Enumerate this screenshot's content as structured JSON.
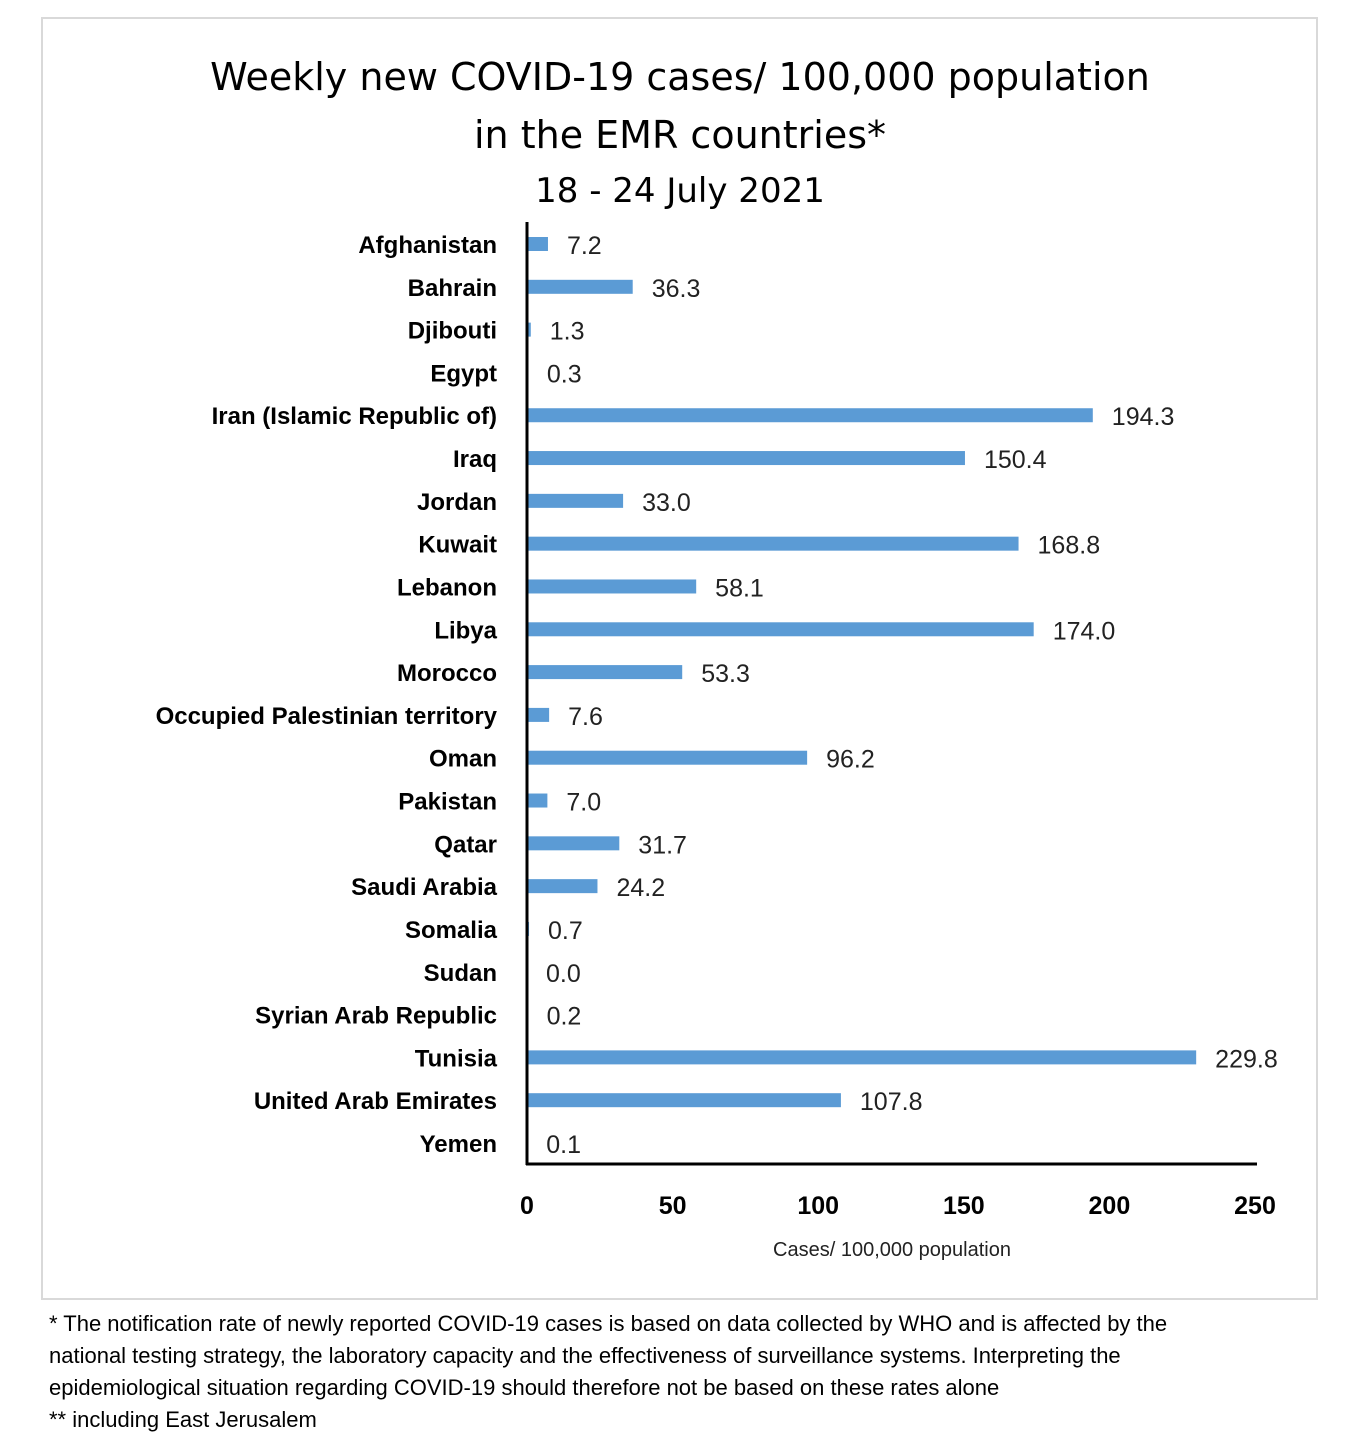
{
  "chart_data": {
    "type": "bar",
    "orientation": "horizontal",
    "title": "Weekly new COVID-19 cases/ 100,000 population",
    "title_line2": "in the EMR countries*",
    "subtitle": "18 - 24 July 2021",
    "xlabel": "Cases/ 100,000 population",
    "ylabel": "",
    "xlim": [
      0,
      250
    ],
    "xticks": [
      "0",
      "50",
      "100",
      "150",
      "200",
      "250"
    ],
    "xtick_values": [
      0,
      50,
      100,
      150,
      200,
      250
    ],
    "grid": false,
    "legend": "none",
    "bar_color": "#5b9bd5",
    "categories": [
      "Afghanistan",
      "Bahrain",
      "Djibouti",
      "Egypt",
      "Iran (Islamic Republic of)",
      "Iraq",
      "Jordan",
      "Kuwait",
      "Lebanon",
      "Libya",
      "Morocco",
      "Occupied Palestinian territory",
      "Oman",
      "Pakistan",
      "Qatar",
      "Saudi Arabia",
      "Somalia",
      "Sudan",
      "Syrian Arab Republic",
      "Tunisia",
      "United Arab Emirates",
      "Yemen"
    ],
    "values": [
      7.2,
      36.3,
      1.3,
      0.3,
      194.3,
      150.4,
      33.0,
      168.8,
      58.1,
      174.0,
      53.3,
      7.6,
      96.2,
      7.0,
      31.7,
      24.2,
      0.7,
      0.0,
      0.2,
      229.8,
      107.8,
      0.1
    ],
    "data_labels": [
      "7.2",
      "36.3",
      "1.3",
      "0.3",
      "194.3",
      "150.4",
      "33.0",
      "168.8",
      "58.1",
      "174.0",
      "53.3",
      "7.6",
      "96.2",
      "7.0",
      "31.7",
      "24.2",
      "0.7",
      "0.0",
      "0.2",
      "229.8",
      "107.8",
      "0.1"
    ]
  },
  "footnote": {
    "lines": [
      "* The notification rate of newly reported COVID-19 cases is based on data collected by WHO and is affected by the",
      "national testing strategy, the laboratory capacity and the effectiveness of surveillance systems. Interpreting the",
      "epidemiological situation regarding COVID-19 should therefore not be based on these rates alone",
      "** including East Jerusalem"
    ]
  }
}
